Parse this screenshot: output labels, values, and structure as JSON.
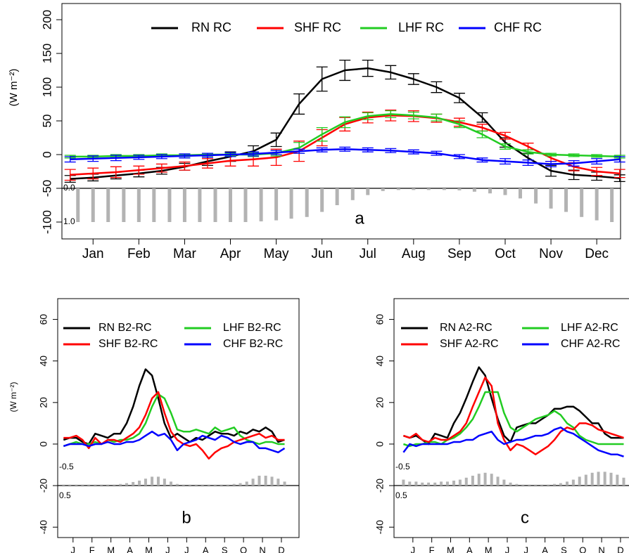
{
  "chart_data": [
    {
      "type": "line",
      "panel_label": "a",
      "ylabel": "(W m⁻²)",
      "xlim": [
        0.32,
        12.52
      ],
      "xticks": [
        {
          "value": 1,
          "label": "Jan"
        },
        {
          "value": 2,
          "label": "Feb"
        },
        {
          "value": 3,
          "label": "Mar"
        },
        {
          "value": 4,
          "label": "Apr"
        },
        {
          "value": 5,
          "label": "May"
        },
        {
          "value": 6,
          "label": "Jun"
        },
        {
          "value": 7,
          "label": "Jul"
        },
        {
          "value": 8,
          "label": "Aug"
        },
        {
          "value": 9,
          "label": "Sep"
        },
        {
          "value": 10,
          "label": "Oct"
        },
        {
          "value": 11,
          "label": "Nov"
        },
        {
          "value": 12,
          "label": "Dec"
        }
      ],
      "ylim": [
        -125,
        224
      ],
      "yticks": [
        -100,
        -50,
        0,
        50,
        100,
        150,
        200
      ],
      "x": [
        0.5,
        1,
        1.5,
        2,
        2.5,
        3,
        3.5,
        4,
        4.5,
        5,
        5.5,
        6,
        6.5,
        7,
        7.5,
        8,
        8.5,
        9,
        9.5,
        10,
        10.5,
        11,
        11.5,
        12,
        12.5
      ],
      "series": [
        {
          "name": "RN RC",
          "color": "#000000",
          "values": [
            -36,
            -34,
            -31,
            -28,
            -24,
            -18,
            -10,
            -3,
            5,
            22,
            75,
            112,
            125,
            128,
            122,
            112,
            100,
            84,
            55,
            18,
            -5,
            -24,
            -30,
            -32,
            -35
          ],
          "errors": [
            5,
            5,
            5,
            5,
            5,
            5,
            6,
            7,
            8,
            10,
            15,
            18,
            15,
            12,
            10,
            8,
            8,
            7,
            7,
            7,
            7,
            8,
            7,
            6,
            5
          ]
        },
        {
          "name": "SHF RC",
          "color": "#ff0000",
          "values": [
            -30,
            -28,
            -26,
            -23,
            -20,
            -17,
            -13,
            -9,
            -7,
            -4,
            5,
            25,
            45,
            55,
            58,
            57,
            54,
            48,
            40,
            28,
            12,
            -5,
            -18,
            -25,
            -28
          ],
          "errors": [
            8,
            8,
            8,
            6,
            6,
            6,
            7,
            8,
            10,
            12,
            15,
            12,
            10,
            8,
            8,
            8,
            6,
            6,
            5,
            5,
            5,
            5,
            6,
            6,
            6
          ]
        },
        {
          "name": "LHF RC",
          "color": "#22cc22",
          "values": [
            -3,
            -3,
            -2,
            -2,
            -1,
            -1,
            0,
            0,
            0,
            2,
            10,
            30,
            48,
            57,
            60,
            58,
            55,
            45,
            30,
            12,
            4,
            0,
            -1,
            -2,
            -3
          ],
          "errors": [
            2,
            2,
            2,
            2,
            2,
            2,
            2,
            2,
            3,
            4,
            8,
            10,
            8,
            5,
            5,
            5,
            5,
            5,
            5,
            4,
            3,
            2,
            2,
            2,
            2
          ]
        },
        {
          "name": "CHF RC",
          "color": "#0000ff",
          "values": [
            -7,
            -6,
            -5,
            -4,
            -3,
            -2,
            -1,
            0,
            1,
            3,
            5,
            7,
            8,
            7,
            6,
            4,
            2,
            -3,
            -8,
            -10,
            -12,
            -14,
            -13,
            -10,
            -7
          ],
          "errors": [
            4,
            4,
            4,
            3,
            3,
            3,
            3,
            3,
            3,
            3,
            3,
            3,
            3,
            3,
            3,
            3,
            3,
            3,
            3,
            4,
            4,
            4,
            4,
            4,
            4
          ]
        }
      ],
      "bar_lim": [
        0,
        1
      ],
      "bar_ticks": [
        {
          "value": 0,
          "label": "0.0"
        },
        {
          "value": 1,
          "label": "1.0"
        }
      ],
      "bar_color": "#b3b3b3",
      "bars": {
        "x": [
          0.67,
          1,
          1.33,
          1.67,
          2,
          2.33,
          2.67,
          3,
          3.33,
          3.67,
          4,
          4.33,
          4.67,
          5,
          5.33,
          5.67,
          6,
          6.33,
          6.67,
          7,
          7.33,
          7.67,
          8,
          8.33,
          8.67,
          9,
          9.33,
          9.67,
          10,
          10.33,
          10.67,
          11,
          11.33,
          11.67,
          12,
          12.33
        ],
        "values": [
          1,
          1,
          1,
          1,
          1,
          1,
          1,
          1,
          1,
          1,
          1,
          1,
          0.98,
          0.95,
          0.9,
          0.85,
          0.7,
          0.5,
          0.35,
          0.2,
          0.08,
          0.05,
          0.05,
          0.05,
          0.05,
          0.06,
          0.1,
          0.15,
          0.2,
          0.3,
          0.45,
          0.6,
          0.7,
          0.85,
          0.95,
          1
        ]
      }
    },
    {
      "type": "line",
      "panel_label": "b",
      "ylabel": "(W m⁻²)",
      "xlim": [
        0.19,
        12.93
      ],
      "xticks": [
        {
          "value": 1,
          "label": "J"
        },
        {
          "value": 2,
          "label": "F"
        },
        {
          "value": 3,
          "label": "M"
        },
        {
          "value": 4,
          "label": "A"
        },
        {
          "value": 5,
          "label": "M"
        },
        {
          "value": 6,
          "label": "J"
        },
        {
          "value": 7,
          "label": "J"
        },
        {
          "value": 8,
          "label": "A"
        },
        {
          "value": 9,
          "label": "S"
        },
        {
          "value": 10,
          "label": "O"
        },
        {
          "value": 11,
          "label": "N"
        },
        {
          "value": 12,
          "label": "D"
        }
      ],
      "ylim": [
        -45,
        70
      ],
      "yticks": [
        -40,
        -20,
        0,
        20,
        40,
        60
      ],
      "x": [
        0.5,
        0.83,
        1.17,
        1.5,
        1.83,
        2.17,
        2.5,
        2.83,
        3.17,
        3.5,
        3.83,
        4.17,
        4.5,
        4.83,
        5.17,
        5.5,
        5.83,
        6.17,
        6.5,
        6.83,
        7.17,
        7.5,
        7.83,
        8.17,
        8.5,
        8.83,
        9.17,
        9.5,
        9.83,
        10.17,
        10.5,
        10.83,
        11.17,
        11.5,
        11.83,
        12.17
      ],
      "series": [
        {
          "name": "RN B2-RC",
          "color": "#000000",
          "values": [
            2,
            3,
            3,
            1,
            0,
            5,
            4,
            3,
            5,
            5,
            10,
            18,
            28,
            36,
            33,
            22,
            10,
            3,
            5,
            3,
            1,
            3,
            2,
            4,
            6,
            5,
            5,
            4,
            6,
            5,
            7,
            6,
            8,
            6,
            1,
            2
          ]
        },
        {
          "name": "LHF B2-RC",
          "color": "#22cc22",
          "values": [
            -1,
            0,
            1,
            0,
            0,
            1,
            0,
            2,
            1,
            2,
            2,
            3,
            5,
            10,
            18,
            24,
            22,
            15,
            7,
            6,
            6,
            7,
            6,
            5,
            8,
            6,
            7,
            8,
            4,
            2,
            1,
            0,
            1,
            1,
            0,
            0
          ]
        },
        {
          "name": "SHF B2-RC",
          "color": "#ff0000",
          "values": [
            3,
            3,
            4,
            2,
            -2,
            3,
            0,
            2,
            2,
            1,
            3,
            5,
            8,
            14,
            22,
            25,
            15,
            6,
            2,
            0,
            -1,
            0,
            -3,
            -7,
            -4,
            -2,
            -1,
            1,
            2,
            3,
            4,
            5,
            3,
            4,
            2,
            2
          ]
        },
        {
          "name": "CHF B2-RC",
          "color": "#0000ff",
          "values": [
            -1,
            0,
            0,
            0,
            -1,
            0,
            0,
            1,
            0,
            0,
            1,
            1,
            2,
            4,
            6,
            4,
            5,
            2,
            -3,
            0,
            1,
            2,
            4,
            3,
            2,
            4,
            3,
            1,
            0,
            1,
            1,
            -2,
            -2,
            -3,
            -4,
            -2
          ]
        }
      ],
      "bar_lim": [
        0.5,
        -0.5
      ],
      "bar_ticks": [
        -0.5,
        0.5
      ],
      "bar_color": "#b3b3b3",
      "bars": {
        "x": [
          0.5,
          0.83,
          1.17,
          1.5,
          1.83,
          2.17,
          2.5,
          2.83,
          3.17,
          3.5,
          3.83,
          4.17,
          4.5,
          4.83,
          5.17,
          5.5,
          5.83,
          6.17,
          6.5,
          6.83,
          7.17,
          7.5,
          7.83,
          8.17,
          8.5,
          8.83,
          9.17,
          9.5,
          9.83,
          10.17,
          10.5,
          10.83,
          11.17,
          11.5,
          11.83,
          12.17
        ],
        "values": [
          0.45,
          0.45,
          0.45,
          0.45,
          0.45,
          0.45,
          0.45,
          0.45,
          0.45,
          0.42,
          0.38,
          0.32,
          0.25,
          0.15,
          0.05,
          0.05,
          0.15,
          0.3,
          0.42,
          0.45,
          0.45,
          0.45,
          0.45,
          0.45,
          0.45,
          0.45,
          0.45,
          0.42,
          0.38,
          0.3,
          0.15,
          0.0,
          0.0,
          0.05,
          0.15,
          0.3
        ]
      }
    },
    {
      "type": "line",
      "panel_label": "c",
      "xlim": [
        0,
        12.86
      ],
      "xticks": [
        {
          "value": 1,
          "label": "J"
        },
        {
          "value": 2,
          "label": "F"
        },
        {
          "value": 3,
          "label": "M"
        },
        {
          "value": 4,
          "label": "A"
        },
        {
          "value": 5,
          "label": "M"
        },
        {
          "value": 6,
          "label": "J"
        },
        {
          "value": 7,
          "label": "J"
        },
        {
          "value": 8,
          "label": "A"
        },
        {
          "value": 9,
          "label": "S"
        },
        {
          "value": 10,
          "label": "O"
        },
        {
          "value": 11,
          "label": "N"
        },
        {
          "value": 12,
          "label": "D"
        }
      ],
      "ylim": [
        -45,
        70
      ],
      "yticks": [
        -40,
        -20,
        0,
        20,
        40,
        60
      ],
      "x": [
        0.5,
        0.83,
        1.17,
        1.5,
        1.83,
        2.17,
        2.5,
        2.83,
        3.17,
        3.5,
        3.83,
        4.17,
        4.5,
        4.83,
        5.17,
        5.5,
        5.83,
        6.17,
        6.5,
        6.83,
        7.17,
        7.5,
        7.83,
        8.17,
        8.5,
        8.83,
        9.17,
        9.5,
        9.83,
        10.17,
        10.5,
        10.83,
        11.17,
        11.5,
        11.83,
        12.17
      ],
      "series": [
        {
          "name": "RN A2-RC",
          "color": "#000000",
          "values": [
            4,
            3,
            4,
            2,
            0,
            5,
            4,
            3,
            10,
            15,
            22,
            30,
            37,
            33,
            22,
            12,
            4,
            1,
            8,
            9,
            10,
            10,
            12,
            14,
            17,
            17,
            18,
            18,
            16,
            13,
            10,
            10,
            5,
            3,
            3,
            3
          ]
        },
        {
          "name": "LHF A2-RC",
          "color": "#22cc22",
          "values": [
            0,
            -1,
            0,
            0,
            1,
            1,
            0,
            2,
            3,
            5,
            8,
            12,
            18,
            25,
            25,
            25,
            15,
            8,
            6,
            8,
            10,
            12,
            13,
            14,
            16,
            14,
            10,
            8,
            4,
            2,
            1,
            0,
            0,
            0,
            0,
            0
          ]
        },
        {
          "name": "SHF A2-RC",
          "color": "#ff0000",
          "values": [
            4,
            3,
            5,
            2,
            1,
            3,
            2,
            2,
            4,
            6,
            10,
            18,
            25,
            32,
            28,
            10,
            2,
            -3,
            0,
            -1,
            -3,
            -5,
            -3,
            -1,
            2,
            6,
            8,
            7,
            10,
            10,
            9,
            7,
            6,
            5,
            4,
            3
          ]
        },
        {
          "name": "CHF A2-RC",
          "color": "#0000ff",
          "values": [
            -4,
            0,
            -1,
            0,
            0,
            0,
            0,
            0,
            1,
            1,
            2,
            2,
            4,
            5,
            6,
            2,
            0,
            1,
            2,
            2,
            3,
            4,
            4,
            5,
            7,
            8,
            6,
            5,
            3,
            1,
            -1,
            -3,
            -4,
            -5,
            -5,
            -6
          ]
        }
      ],
      "bar_lim": [
        0.5,
        -0.5
      ],
      "bar_ticks": [
        -0.5,
        0.5
      ],
      "bar_color": "#b3b3b3",
      "bars": {
        "x": [
          0.5,
          0.83,
          1.17,
          1.5,
          1.83,
          2.17,
          2.5,
          2.83,
          3.17,
          3.5,
          3.83,
          4.17,
          4.5,
          4.83,
          5.17,
          5.5,
          5.83,
          6.17,
          6.5,
          6.83,
          7.17,
          7.5,
          7.83,
          8.17,
          8.5,
          8.83,
          9.17,
          9.5,
          9.83,
          10.17,
          10.5,
          10.83,
          11.17,
          11.5,
          11.83,
          12.17
        ],
        "values": [
          0.2,
          0.3,
          0.3,
          0.35,
          0.35,
          0.35,
          0.3,
          0.3,
          0.25,
          0.2,
          0.1,
          0.0,
          -0.1,
          -0.15,
          -0.1,
          0.05,
          0.2,
          0.35,
          0.42,
          0.45,
          0.45,
          0.45,
          0.45,
          0.45,
          0.42,
          0.38,
          0.3,
          0.2,
          0.05,
          -0.05,
          -0.15,
          -0.2,
          -0.2,
          -0.15,
          -0.05,
          0.1
        ]
      }
    }
  ]
}
